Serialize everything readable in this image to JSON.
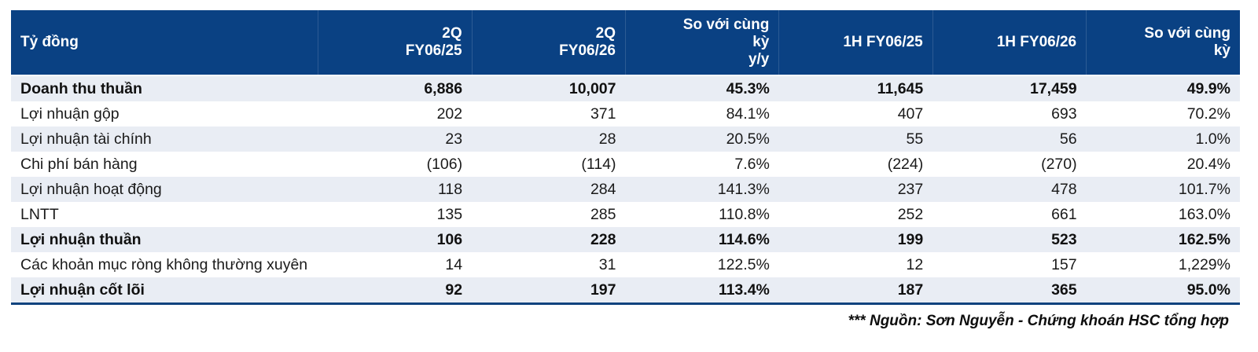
{
  "chart_data": {
    "type": "table",
    "unit_label": "Tỷ đồng",
    "columns": [
      "2Q\nFY06/25",
      "2Q\nFY06/26",
      "So với cùng\nkỳ\ny/y",
      "1H FY06/25",
      "1H FY06/26",
      "So với cùng\nkỳ"
    ],
    "rows": [
      {
        "label": "Doanh thu thuần",
        "values": [
          "6,886",
          "10,007",
          "45.3%",
          "11,645",
          "17,459",
          "49.9%"
        ]
      },
      {
        "label": "Lợi nhuận gộp",
        "values": [
          "202",
          "371",
          "84.1%",
          "407",
          "693",
          "70.2%"
        ]
      },
      {
        "label": "Lợi nhuận tài chính",
        "values": [
          "23",
          "28",
          "20.5%",
          "55",
          "56",
          "1.0%"
        ]
      },
      {
        "label": "Chi phí bán hàng",
        "values": [
          "(106)",
          "(114)",
          "7.6%",
          "(224)",
          "(270)",
          "20.4%"
        ]
      },
      {
        "label": "Lợi nhuận hoạt động",
        "values": [
          "118",
          "284",
          "141.3%",
          "237",
          "478",
          "101.7%"
        ]
      },
      {
        "label": "LNTT",
        "values": [
          "135",
          "285",
          "110.8%",
          "252",
          "661",
          "163.0%"
        ]
      },
      {
        "label": "Lợi nhuận thuần",
        "values": [
          "106",
          "228",
          "114.6%",
          "199",
          "523",
          "162.5%"
        ]
      },
      {
        "label": "Các khoản mục ròng không thường xuyên",
        "values": [
          "14",
          "31",
          "122.5%",
          "12",
          "157",
          "1,229%"
        ]
      },
      {
        "label": "Lợi nhuận cốt lõi",
        "values": [
          "92",
          "197",
          "113.4%",
          "187",
          "365",
          "95.0%"
        ]
      }
    ]
  },
  "footer": {
    "source_note": "*** Nguồn: Sơn Nguyễn - Chứng khoán HSC tổng hợp"
  },
  "colors": {
    "header_bg": "#0A4183",
    "header_text": "#FFFFFF",
    "row_alt_bg": "#E9EDF4",
    "bottom_border": "#11437E",
    "body_text": "#1A1A1A"
  }
}
